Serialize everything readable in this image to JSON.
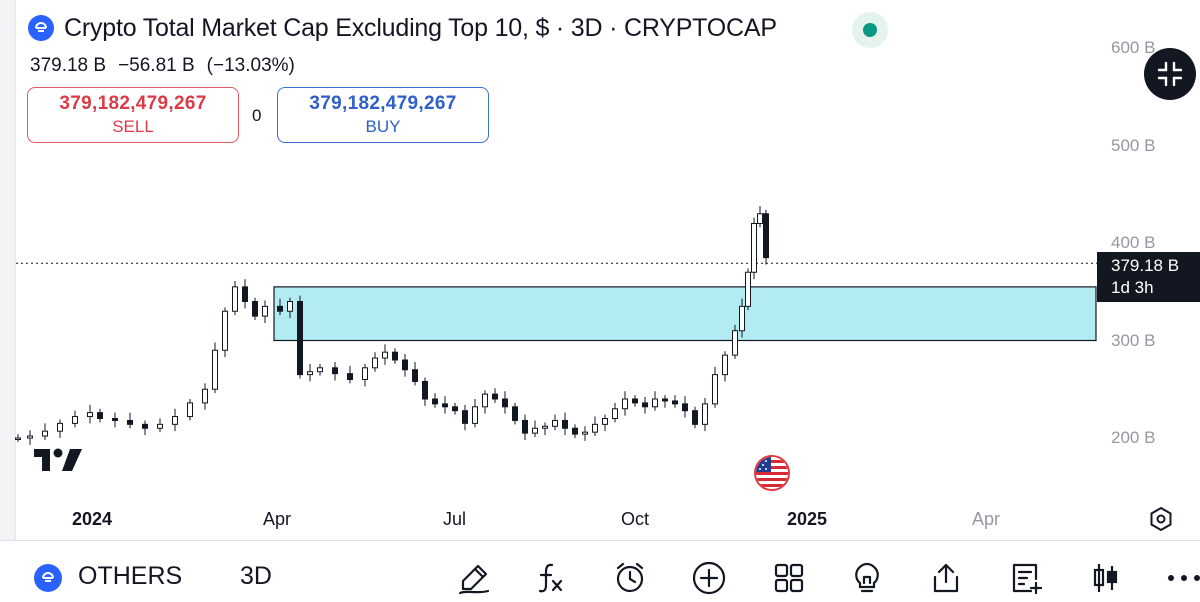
{
  "header": {
    "title": "Crypto Total Market Cap Excluding Top 10, $ · 3D · CRYPTOCAP",
    "logo_icon": "crypto-logo-icon",
    "status_color": "#089981"
  },
  "quote": {
    "last": "379.18 B",
    "change": "−56.81 B",
    "change_pct": "(−13.03%)"
  },
  "trade": {
    "sell_value": "379,182,479,267",
    "sell_label": "SELL",
    "spread": "0",
    "buy_value": "379,182,479,267",
    "buy_label": "BUY"
  },
  "price_scale": {
    "labels": [
      "600 B",
      "500 B",
      "400 B",
      "300 B",
      "200 B"
    ],
    "current_price": "379.18 B",
    "countdown": "1d 3h"
  },
  "time_axis": {
    "labels": [
      {
        "text": "2024",
        "bold": true
      },
      {
        "text": "Apr",
        "bold": false
      },
      {
        "text": "Jul",
        "bold": false
      },
      {
        "text": "Oct",
        "bold": false
      },
      {
        "text": "2025",
        "bold": true
      },
      {
        "text": "Apr",
        "bold": false,
        "dim": true
      }
    ]
  },
  "zone": {
    "top_value": 355,
    "bottom_value": 300,
    "fill": "#b2ebf2"
  },
  "chart_data": {
    "type": "candlestick",
    "symbol": "OTHERS",
    "interval": "3D",
    "ylim": [
      195,
      600
    ],
    "up_color": "#131722",
    "down_color": "#131722"
  },
  "bottom_bar": {
    "symbol": "OTHERS",
    "interval": "3D",
    "tools": [
      "drawing-icon",
      "indicators-icon",
      "alert-icon",
      "add-icon",
      "layouts-icon",
      "ideas-icon",
      "share-icon",
      "watchlist-add-icon",
      "chart-type-icon",
      "more-icon"
    ]
  },
  "colors": {
    "sell": "#d93c48",
    "buy": "#2f5fc8",
    "brand": "#2962ff"
  }
}
